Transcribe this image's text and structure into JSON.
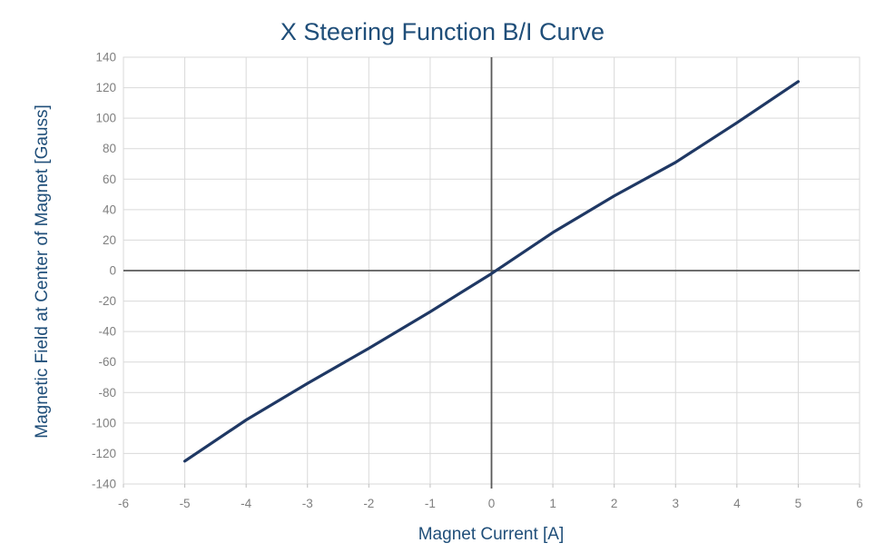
{
  "chart": {
    "colors": {
      "title_text": "#1F4E79",
      "axis_title_text": "#1F4E79",
      "tick_label_text": "#7F7F7F",
      "gridline": "#D9D9D9",
      "zero_axis": "#595959",
      "series_line": "#1F3864",
      "background": "#FFFFFF"
    }
  },
  "chart_data": {
    "type": "line",
    "title": "X Steering Function B/I Curve",
    "xlabel": "Magnet Current [A]",
    "ylabel": "Magnetic Field at Center of Magnet [Gauss]",
    "xlim": [
      -6,
      6
    ],
    "ylim": [
      -140,
      140
    ],
    "x_ticks": [
      -6,
      -5,
      -4,
      -3,
      -2,
      -1,
      0,
      1,
      2,
      3,
      4,
      5,
      6
    ],
    "y_ticks": [
      140,
      120,
      100,
      80,
      60,
      40,
      20,
      0,
      -20,
      -40,
      -60,
      -80,
      -100,
      -120,
      -140
    ],
    "grid": true,
    "legend_position": "none",
    "series": [
      {
        "x": [
          -5,
          -4,
          -3,
          -2,
          -1,
          0,
          1,
          2,
          3,
          4,
          5
        ],
        "y": [
          -125,
          -98,
          -74,
          -51,
          -27,
          -2,
          25,
          49,
          71,
          97,
          124
        ]
      }
    ]
  }
}
